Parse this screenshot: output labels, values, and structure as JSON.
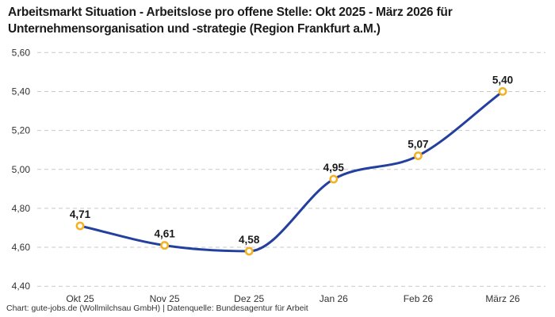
{
  "header": {
    "title_lines": [
      "Arbeitsmarkt Situation - Arbeitslose pro offene Stelle: Okt 2025 - März 2026 für",
      "Unternehmensorganisation und -strategie (Region Frankfurt a.M.)"
    ]
  },
  "footer": {
    "credit": "Chart: gute-jobs.de (Wollmilchsau GmbH) | Datenquelle: Bundesagentur für Arbeit"
  },
  "chart_data": {
    "type": "line",
    "title": "Arbeitsmarkt Situation - Arbeitslose pro offene Stelle: Okt 2025 - März 2026 für Unternehmensorganisation und -strategie (Region Frankfurt a.M.)",
    "categories": [
      "Okt 25",
      "Nov 25",
      "Dez 25",
      "Jan 26",
      "Feb 26",
      "März 26"
    ],
    "values": [
      4.71,
      4.61,
      4.58,
      4.95,
      5.07,
      5.4
    ],
    "value_labels": [
      "4,71",
      "4,61",
      "4,58",
      "4,95",
      "5,07",
      "5,40"
    ],
    "xlabel": "",
    "ylabel": "",
    "ylim": [
      4.4,
      5.6
    ],
    "ytick_step": 0.2,
    "ytick_labels": [
      "4,40",
      "4,60",
      "4,80",
      "5,00",
      "5,20",
      "5,40",
      "5,60"
    ],
    "grid": "horizontal-dashed",
    "legend": "none",
    "colors": {
      "line": "#24409e",
      "marker_ring": "#f4b223",
      "marker_fill": "#ffffff",
      "grid": "#c9c9c9",
      "value_label": "#1a1a1a",
      "axis_text": "#333333",
      "title": "#1a1a1a",
      "background": "#ffffff"
    }
  }
}
